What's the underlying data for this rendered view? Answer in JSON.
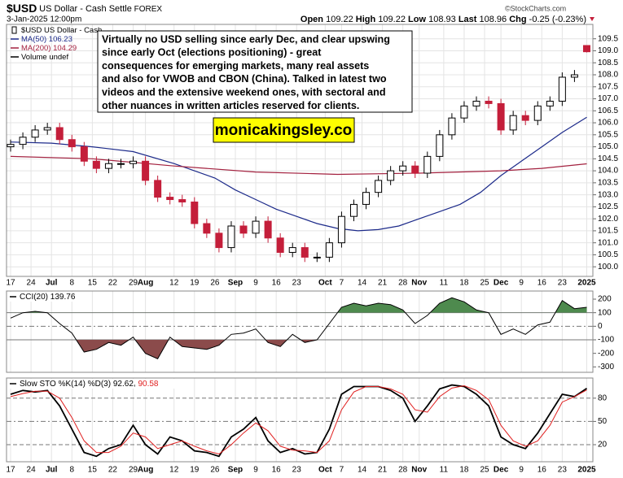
{
  "chart_data": [
    {
      "type": "candlestick",
      "header": {
        "symbol": "$USD",
        "name": "US Dollar - Cash Settle",
        "exchange": "FOREX",
        "date": "3-Jan-2025 12:00pm",
        "open_label": "Open",
        "high_label": "High",
        "low_label": "Low",
        "last_label": "Last",
        "chg_label": "Chg",
        "chg": -0.25,
        "chg_pct": {
          "value": -0.23,
          "label": "(-0.23%)"
        }
      },
      "watermark": "©StockCharts.com",
      "legend_name": "$USD US Dollar - Cash ...",
      "volume_label": "Volume undef",
      "up_color": "#000000",
      "down_color": "#c41e3a",
      "x": [
        0,
        3,
        6,
        9,
        12,
        15,
        18,
        21,
        24,
        27,
        30,
        33,
        36,
        39,
        42,
        45,
        48,
        51,
        54,
        57,
        60,
        63,
        66,
        69,
        72,
        75,
        78,
        81,
        84,
        87,
        90,
        93,
        96,
        99,
        102,
        105,
        108,
        111,
        114,
        117,
        120,
        123,
        126,
        129,
        132,
        135,
        138,
        141
      ],
      "open": [
        105.0,
        105.1,
        105.4,
        105.7,
        105.8,
        105.3,
        105.0,
        104.4,
        104.1,
        104.3,
        104.3,
        104.4,
        103.6,
        102.9,
        102.8,
        102.7,
        101.8,
        101.4,
        100.8,
        101.7,
        101.4,
        101.9,
        101.2,
        100.6,
        100.8,
        100.4,
        100.4,
        101.0,
        102.1,
        102.6,
        103.1,
        103.6,
        104.0,
        104.2,
        103.9,
        104.6,
        105.5,
        106.2,
        106.7,
        106.9,
        106.8,
        105.7,
        106.3,
        106.1,
        106.7,
        106.9,
        107.9,
        109.22
      ],
      "high": [
        105.3,
        105.6,
        105.9,
        106.0,
        106.0,
        105.5,
        105.2,
        104.6,
        104.5,
        104.5,
        104.6,
        104.6,
        103.8,
        103.1,
        103.0,
        102.9,
        102.0,
        101.6,
        101.9,
        101.9,
        102.1,
        102.1,
        101.4,
        101.0,
        101.0,
        100.6,
        101.2,
        102.3,
        102.8,
        103.3,
        103.8,
        104.2,
        104.4,
        104.4,
        104.8,
        105.7,
        106.4,
        106.9,
        107.1,
        107.1,
        107.0,
        106.5,
        106.5,
        106.9,
        107.1,
        108.1,
        108.2,
        109.22
      ],
      "low": [
        104.8,
        104.9,
        105.2,
        105.5,
        105.1,
        104.8,
        104.2,
        103.9,
        103.9,
        104.1,
        104.1,
        103.4,
        102.7,
        102.6,
        102.5,
        101.6,
        101.2,
        100.6,
        100.6,
        101.2,
        101.2,
        101.0,
        100.4,
        100.4,
        100.2,
        100.2,
        100.2,
        100.8,
        101.9,
        102.4,
        102.9,
        103.4,
        103.8,
        103.7,
        103.7,
        104.4,
        105.3,
        106.0,
        106.5,
        106.6,
        105.5,
        105.5,
        105.9,
        105.9,
        106.5,
        106.7,
        107.7,
        108.93
      ],
      "close": [
        105.1,
        105.4,
        105.7,
        105.8,
        105.3,
        105.0,
        104.4,
        104.1,
        104.3,
        104.3,
        104.4,
        103.6,
        102.9,
        102.8,
        102.7,
        101.8,
        101.4,
        100.8,
        101.7,
        101.4,
        101.9,
        101.2,
        100.6,
        100.8,
        100.4,
        100.4,
        101.0,
        102.1,
        102.6,
        103.1,
        103.6,
        104.0,
        104.2,
        103.9,
        104.6,
        105.5,
        106.2,
        106.7,
        106.9,
        106.8,
        105.7,
        106.3,
        106.1,
        106.7,
        106.9,
        107.9,
        108.0,
        108.96
      ],
      "overlays": [
        {
          "name": "MA(50)",
          "color": "#1c2a8a",
          "x": [
            0,
            10,
            20,
            30,
            40,
            50,
            55,
            60,
            65,
            70,
            75,
            80,
            85,
            90,
            95,
            100,
            105,
            110,
            115,
            120,
            125,
            130,
            135,
            141
          ],
          "values": [
            105.2,
            105.15,
            105.0,
            104.8,
            104.3,
            103.7,
            103.2,
            102.8,
            102.4,
            102.1,
            101.8,
            101.6,
            101.5,
            101.55,
            101.7,
            102.0,
            102.3,
            102.6,
            103.1,
            103.8,
            104.4,
            105.0,
            105.6,
            106.23
          ]
        },
        {
          "name": "MA(200)",
          "color": "#a3213f",
          "x": [
            0,
            20,
            40,
            60,
            80,
            100,
            120,
            130,
            141
          ],
          "values": [
            104.6,
            104.5,
            104.2,
            103.95,
            103.85,
            103.9,
            104.0,
            104.1,
            104.29
          ]
        }
      ],
      "xlim": [
        -1,
        142.5
      ],
      "xticks": [
        {
          "value": 0,
          "label": "17"
        },
        {
          "value": 5,
          "label": "24"
        },
        {
          "value": 10,
          "label": "Jul"
        },
        {
          "value": 15,
          "label": "8"
        },
        {
          "value": 20,
          "label": "15"
        },
        {
          "value": 25,
          "label": "22"
        },
        {
          "value": 30,
          "label": "29"
        },
        {
          "value": 33,
          "label": "Aug"
        },
        {
          "value": 40,
          "label": "12"
        },
        {
          "value": 45,
          "label": "19"
        },
        {
          "value": 50,
          "label": "26"
        },
        {
          "value": 55,
          "label": "Sep"
        },
        {
          "value": 60,
          "label": "9"
        },
        {
          "value": 65,
          "label": "16"
        },
        {
          "value": 70,
          "label": "23"
        },
        {
          "value": 77,
          "label": "Oct"
        },
        {
          "value": 81,
          "label": "7"
        },
        {
          "value": 86,
          "label": "14"
        },
        {
          "value": 91,
          "label": "21"
        },
        {
          "value": 96,
          "label": "28"
        },
        {
          "value": 100,
          "label": "Nov"
        },
        {
          "value": 106,
          "label": "11"
        },
        {
          "value": 111,
          "label": "18"
        },
        {
          "value": 116,
          "label": "25"
        },
        {
          "value": 120,
          "label": "Dec"
        },
        {
          "value": 125,
          "label": "9"
        },
        {
          "value": 130,
          "label": "16"
        },
        {
          "value": 135,
          "label": "23"
        },
        {
          "value": 141,
          "label": "2025"
        }
      ],
      "ylim": [
        99.6,
        110.1
      ],
      "yticks": [
        {
          "value": 100,
          "label": "100.0"
        },
        100.5,
        {
          "value": 101,
          "label": "101.0"
        },
        101.5,
        {
          "value": 102,
          "label": "102.0"
        },
        102.5,
        {
          "value": 103,
          "label": "103.0"
        },
        103.5,
        {
          "value": 104,
          "label": "104.0"
        },
        104.5,
        {
          "value": 105,
          "label": "105.0"
        },
        105.5,
        {
          "value": 106,
          "label": "106.0"
        },
        106.5,
        {
          "value": 107,
          "label": "107.0"
        },
        107.5,
        {
          "value": 108,
          "label": "108.0"
        },
        108.5,
        {
          "value": 109,
          "label": "109.0"
        },
        109.5
      ],
      "grid": true,
      "annotation": [
        "Virtually no USD selling since early Dec, and clear upswing",
        "since early Oct (elections positioning) - great",
        "consequences for emerging markets, many real assets",
        "and also for VWOB and CBON (China). Talked in latest two",
        "videos and the extensive weekend ones, with sectoral and",
        "other nuances in written articles reserved for clients."
      ],
      "site": "monicakingsley.co"
    },
    {
      "type": "line",
      "title": "CCI(20)",
      "x": [
        0,
        3,
        6,
        9,
        12,
        15,
        18,
        21,
        24,
        27,
        30,
        33,
        36,
        39,
        42,
        45,
        48,
        51,
        54,
        57,
        60,
        63,
        66,
        69,
        72,
        75,
        78,
        81,
        84,
        87,
        90,
        93,
        96,
        99,
        102,
        105,
        108,
        111,
        114,
        117,
        120,
        123,
        126,
        129,
        132,
        135,
        138,
        141
      ],
      "series": [
        {
          "name": "CCI(20)",
          "color": "#000000",
          "values": [
            60,
            100,
            110,
            100,
            20,
            -50,
            -190,
            -170,
            -120,
            -140,
            -80,
            -200,
            -240,
            -80,
            -150,
            -160,
            -170,
            -140,
            -60,
            -50,
            -20,
            -120,
            -150,
            -60,
            -120,
            -100,
            20,
            140,
            170,
            150,
            170,
            160,
            120,
            20,
            80,
            170,
            210,
            180,
            120,
            100,
            -60,
            -20,
            -60,
            10,
            30,
            190,
            130,
            139.76
          ]
        }
      ],
      "fill_above": {
        "level": 100,
        "color": "#4e8a4e"
      },
      "fill_below": {
        "level": -100,
        "color": "#8b4b4b"
      },
      "ref_lines": [
        100,
        0,
        -100
      ],
      "ylim": [
        -340,
        260
      ],
      "yticks": [
        200,
        100,
        0,
        -100,
        -200,
        -300
      ]
    },
    {
      "type": "line",
      "title": "Slow STO %K(14) %D(3)",
      "x": [
        0,
        3,
        6,
        9,
        12,
        15,
        18,
        21,
        24,
        27,
        30,
        33,
        36,
        39,
        42,
        45,
        48,
        51,
        54,
        57,
        60,
        63,
        66,
        69,
        72,
        75,
        78,
        81,
        84,
        87,
        90,
        93,
        96,
        99,
        102,
        105,
        108,
        111,
        114,
        117,
        120,
        123,
        126,
        129,
        132,
        135,
        138,
        141
      ],
      "series": [
        {
          "name": "%K(14)",
          "color": "#000000",
          "values": [
            85,
            90,
            88,
            90,
            70,
            40,
            10,
            5,
            15,
            20,
            45,
            20,
            8,
            30,
            25,
            12,
            10,
            5,
            30,
            40,
            55,
            25,
            10,
            15,
            8,
            10,
            40,
            85,
            95,
            95,
            95,
            90,
            80,
            50,
            70,
            92,
            97,
            95,
            85,
            70,
            30,
            20,
            15,
            35,
            60,
            85,
            82,
            92.62
          ]
        },
        {
          "name": "%D(3)",
          "color": "#e02020",
          "values": [
            82,
            86,
            89,
            89,
            80,
            55,
            25,
            10,
            10,
            18,
            35,
            30,
            15,
            20,
            25,
            18,
            12,
            8,
            20,
            35,
            48,
            38,
            18,
            13,
            12,
            10,
            25,
            65,
            88,
            95,
            95,
            92,
            85,
            65,
            62,
            82,
            93,
            96,
            90,
            78,
            45,
            25,
            18,
            25,
            45,
            75,
            82,
            90.58
          ]
        }
      ],
      "ref_lines": [
        80,
        50,
        20
      ],
      "ylim": [
        -2,
        106
      ],
      "yticks": [
        80,
        50,
        20
      ]
    }
  ]
}
